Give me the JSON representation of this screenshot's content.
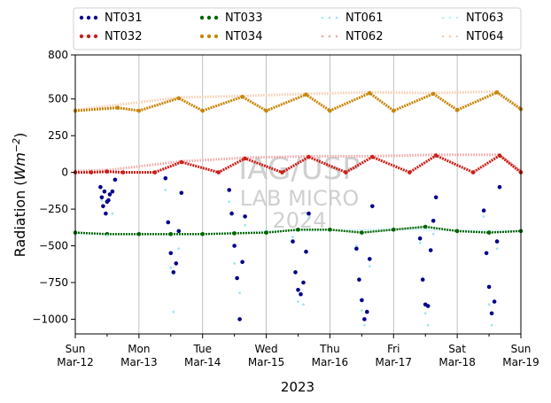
{
  "chart_data": {
    "type": "scatter",
    "xlabel_main": "2023",
    "ylabel_prefix": "Radiation (",
    "ylabel_unit": "Wm",
    "ylabel_exp": "−2",
    "ylabel_suffix": ")",
    "xlim": [
      "2023-03-12",
      "2023-03-19"
    ],
    "ylim": [
      -1100,
      800
    ],
    "yticks": [
      800,
      500,
      250,
      0,
      -250,
      -500,
      -750,
      -1000
    ],
    "ytick_labels": [
      "800",
      "500",
      "250",
      "0",
      "−250",
      "−500",
      "−750",
      "−1000"
    ],
    "xticks": [
      {
        "day": "Sun",
        "date": "Mar-12"
      },
      {
        "day": "Mon",
        "date": "Mar-13"
      },
      {
        "day": "Tue",
        "date": "Mar-14"
      },
      {
        "day": "Wed",
        "date": "Mar-15"
      },
      {
        "day": "Thu",
        "date": "Mar-16"
      },
      {
        "day": "Fri",
        "date": "Mar-17"
      },
      {
        "day": "Sat",
        "date": "Mar-18"
      },
      {
        "day": "Sun",
        "date": "Mar-19"
      }
    ],
    "grid": "vertical",
    "legend_position": "top",
    "watermark": [
      "IAG/USP",
      "LAB MICRO",
      "2024"
    ],
    "series": [
      {
        "name": "NT031",
        "color": "#00008b",
        "style": "dots",
        "points": [
          [
            "2023-03-12 09:30",
            -100
          ],
          [
            "2023-03-12 10:00",
            -170
          ],
          [
            "2023-03-12 10:30",
            -230
          ],
          [
            "2023-03-12 11:00",
            -130
          ],
          [
            "2023-03-12 11:30",
            -280
          ],
          [
            "2023-03-12 12:00",
            -200
          ],
          [
            "2023-03-12 12:30",
            -190
          ],
          [
            "2023-03-12 13:00",
            -150
          ],
          [
            "2023-03-12 14:00",
            -130
          ],
          [
            "2023-03-12 15:00",
            -50
          ],
          [
            "2023-03-13 10:00",
            -40
          ],
          [
            "2023-03-13 11:00",
            -340
          ],
          [
            "2023-03-13 12:00",
            -550
          ],
          [
            "2023-03-13 13:00",
            -680
          ],
          [
            "2023-03-13 14:00",
            -620
          ],
          [
            "2023-03-13 15:00",
            -400
          ],
          [
            "2023-03-13 16:00",
            -140
          ],
          [
            "2023-03-14 10:00",
            -120
          ],
          [
            "2023-03-14 11:00",
            -280
          ],
          [
            "2023-03-14 12:00",
            -500
          ],
          [
            "2023-03-14 13:00",
            -720
          ],
          [
            "2023-03-14 14:00",
            -1000
          ],
          [
            "2023-03-14 15:00",
            -610
          ],
          [
            "2023-03-14 16:00",
            -300
          ],
          [
            "2023-03-15 10:00",
            -470
          ],
          [
            "2023-03-15 11:00",
            -680
          ],
          [
            "2023-03-15 12:00",
            -800
          ],
          [
            "2023-03-15 13:00",
            -830
          ],
          [
            "2023-03-15 14:00",
            -750
          ],
          [
            "2023-03-15 15:00",
            -540
          ],
          [
            "2023-03-15 16:00",
            -280
          ],
          [
            "2023-03-16 10:00",
            -520
          ],
          [
            "2023-03-16 11:00",
            -730
          ],
          [
            "2023-03-16 12:00",
            -870
          ],
          [
            "2023-03-16 13:00",
            -1000
          ],
          [
            "2023-03-16 14:00",
            -950
          ],
          [
            "2023-03-16 15:00",
            -590
          ],
          [
            "2023-03-16 16:00",
            -230
          ],
          [
            "2023-03-17 10:00",
            -450
          ],
          [
            "2023-03-17 11:00",
            -730
          ],
          [
            "2023-03-17 12:00",
            -900
          ],
          [
            "2023-03-17 13:00",
            -910
          ],
          [
            "2023-03-17 14:00",
            -530
          ],
          [
            "2023-03-17 15:00",
            -330
          ],
          [
            "2023-03-17 16:00",
            -170
          ],
          [
            "2023-03-18 10:00",
            -260
          ],
          [
            "2023-03-18 11:00",
            -550
          ],
          [
            "2023-03-18 12:00",
            -780
          ],
          [
            "2023-03-18 13:00",
            -960
          ],
          [
            "2023-03-18 14:00",
            -880
          ],
          [
            "2023-03-18 15:00",
            -470
          ],
          [
            "2023-03-18 16:00",
            -100
          ]
        ]
      },
      {
        "name": "NT032",
        "color": "#c8201a",
        "style": "dots",
        "points": [
          [
            "2023-03-12 00:00",
            0
          ],
          [
            "2023-03-12 06:00",
            0
          ],
          [
            "2023-03-12 12:00",
            5
          ],
          [
            "2023-03-12 18:00",
            0
          ],
          [
            "2023-03-13 06:00",
            0
          ],
          [
            "2023-03-13 16:00",
            70
          ],
          [
            "2023-03-14 06:00",
            0
          ],
          [
            "2023-03-14 16:00",
            95
          ],
          [
            "2023-03-15 06:00",
            0
          ],
          [
            "2023-03-15 16:00",
            105
          ],
          [
            "2023-03-16 06:00",
            0
          ],
          [
            "2023-03-16 16:00",
            105
          ],
          [
            "2023-03-17 06:00",
            0
          ],
          [
            "2023-03-17 16:00",
            115
          ],
          [
            "2023-03-18 06:00",
            0
          ],
          [
            "2023-03-18 16:00",
            115
          ],
          [
            "2023-03-19 00:00",
            0
          ]
        ]
      },
      {
        "name": "NT033",
        "color": "#006400",
        "style": "dots",
        "points": [
          [
            "2023-03-12 00:00",
            -410
          ],
          [
            "2023-03-12 12:00",
            -420
          ],
          [
            "2023-03-13 00:00",
            -420
          ],
          [
            "2023-03-13 12:00",
            -420
          ],
          [
            "2023-03-14 00:00",
            -420
          ],
          [
            "2023-03-14 12:00",
            -415
          ],
          [
            "2023-03-15 00:00",
            -410
          ],
          [
            "2023-03-15 12:00",
            -390
          ],
          [
            "2023-03-16 00:00",
            -390
          ],
          [
            "2023-03-16 12:00",
            -410
          ],
          [
            "2023-03-17 00:00",
            -390
          ],
          [
            "2023-03-17 12:00",
            -370
          ],
          [
            "2023-03-18 00:00",
            -400
          ],
          [
            "2023-03-18 12:00",
            -410
          ],
          [
            "2023-03-19 00:00",
            -400
          ]
        ]
      },
      {
        "name": "NT034",
        "color": "#c8860a",
        "style": "dots",
        "points": [
          [
            "2023-03-12 00:00",
            420
          ],
          [
            "2023-03-12 16:00",
            440
          ],
          [
            "2023-03-13 00:00",
            420
          ],
          [
            "2023-03-13 15:00",
            505
          ],
          [
            "2023-03-14 00:00",
            420
          ],
          [
            "2023-03-14 15:00",
            515
          ],
          [
            "2023-03-15 00:00",
            420
          ],
          [
            "2023-03-15 15:00",
            530
          ],
          [
            "2023-03-16 00:00",
            420
          ],
          [
            "2023-03-16 15:00",
            540
          ],
          [
            "2023-03-17 00:00",
            420
          ],
          [
            "2023-03-17 15:00",
            535
          ],
          [
            "2023-03-18 00:00",
            425
          ],
          [
            "2023-03-18 15:00",
            545
          ],
          [
            "2023-03-19 00:00",
            430
          ]
        ]
      },
      {
        "name": "NT061",
        "color": "#9ee6f5",
        "style": "dotted",
        "points": [
          [
            "2023-03-12 10:00",
            -190
          ],
          [
            "2023-03-12 12:00",
            -430
          ],
          [
            "2023-03-12 14:00",
            -280
          ],
          [
            "2023-03-13 10:00",
            -120
          ],
          [
            "2023-03-13 12:00",
            -650
          ],
          [
            "2023-03-13 13:00",
            -950
          ],
          [
            "2023-03-13 15:00",
            -520
          ],
          [
            "2023-03-14 10:00",
            -200
          ],
          [
            "2023-03-14 12:00",
            -620
          ],
          [
            "2023-03-14 14:00",
            -820
          ],
          [
            "2023-03-14 16:00",
            -360
          ],
          [
            "2023-03-15 10:00",
            -440
          ],
          [
            "2023-03-15 12:00",
            -880
          ],
          [
            "2023-03-15 14:00",
            -900
          ],
          [
            "2023-03-15 16:00",
            -310
          ],
          [
            "2023-03-16 10:00",
            -500
          ],
          [
            "2023-03-16 12:00",
            -940
          ],
          [
            "2023-03-16 13:00",
            -1040
          ],
          [
            "2023-03-16 15:00",
            -640
          ],
          [
            "2023-03-17 10:00",
            -480
          ],
          [
            "2023-03-17 12:00",
            -960
          ],
          [
            "2023-03-17 13:00",
            -1040
          ],
          [
            "2023-03-17 15:00",
            -420
          ],
          [
            "2023-03-18 10:00",
            -300
          ],
          [
            "2023-03-18 12:00",
            -900
          ],
          [
            "2023-03-18 13:00",
            -1040
          ],
          [
            "2023-03-18 15:00",
            -520
          ]
        ]
      },
      {
        "name": "NT062",
        "color": "#f0a6a6",
        "style": "dotted",
        "points": [
          [
            "2023-03-12 00:00",
            10
          ],
          [
            "2023-03-12 12:00",
            15
          ],
          [
            "2023-03-13 16:00",
            75
          ],
          [
            "2023-03-14 16:00",
            100
          ],
          [
            "2023-03-15 16:00",
            110
          ],
          [
            "2023-03-16 16:00",
            110
          ],
          [
            "2023-03-17 16:00",
            120
          ],
          [
            "2023-03-18 16:00",
            120
          ],
          [
            "2023-03-19 00:00",
            10
          ]
        ]
      },
      {
        "name": "NT063",
        "color": "#bfeefa",
        "style": "dotted",
        "points": [
          [
            "2023-03-12 00:00",
            -420
          ],
          [
            "2023-03-13 00:00",
            -425
          ],
          [
            "2023-03-14 00:00",
            -420
          ],
          [
            "2023-03-15 00:00",
            -400
          ],
          [
            "2023-03-16 00:00",
            -395
          ],
          [
            "2023-03-17 00:00",
            -385
          ],
          [
            "2023-03-18 00:00",
            -395
          ],
          [
            "2023-03-19 00:00",
            -400
          ]
        ]
      },
      {
        "name": "NT064",
        "color": "#f5ccb0",
        "style": "dotted",
        "points": [
          [
            "2023-03-12 00:00",
            425
          ],
          [
            "2023-03-13 15:00",
            510
          ],
          [
            "2023-03-14 15:00",
            520
          ],
          [
            "2023-03-15 15:00",
            535
          ],
          [
            "2023-03-16 15:00",
            545
          ],
          [
            "2023-03-17 15:00",
            540
          ],
          [
            "2023-03-18 15:00",
            550
          ],
          [
            "2023-03-19 00:00",
            435
          ]
        ]
      }
    ]
  }
}
